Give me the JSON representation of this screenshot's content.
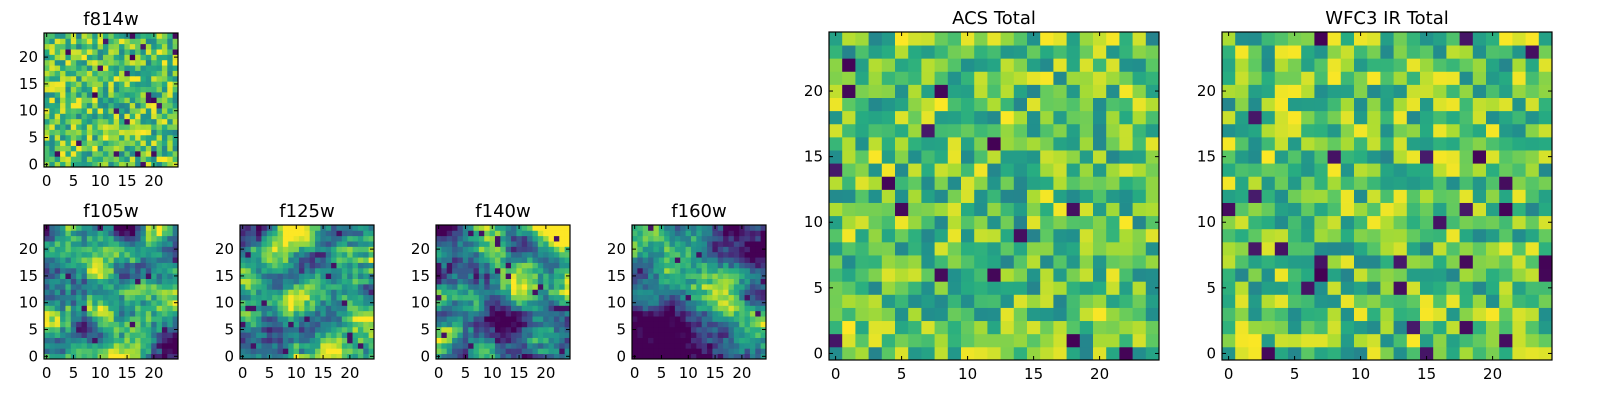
{
  "figure": {
    "description_colormap": "viridis"
  },
  "chart_data": [
    {
      "type": "heatmap",
      "title": "f814w",
      "grid": [
        25,
        25
      ],
      "x_ticks": [
        "0",
        "5",
        "10",
        "15",
        "20"
      ],
      "y_ticks": [
        "0",
        "5",
        "10",
        "15",
        "20"
      ],
      "xlim": [
        0,
        24
      ],
      "ylim": [
        0,
        24
      ],
      "pattern": "fine-noise"
    },
    {
      "type": "heatmap",
      "title": "f105w",
      "grid": [
        25,
        25
      ],
      "x_ticks": [
        "0",
        "5",
        "10",
        "15",
        "20"
      ],
      "y_ticks": [
        "0",
        "5",
        "10",
        "15",
        "20"
      ],
      "xlim": [
        0,
        24
      ],
      "ylim": [
        0,
        24
      ],
      "pattern": "smooth"
    },
    {
      "type": "heatmap",
      "title": "f125w",
      "grid": [
        25,
        25
      ],
      "x_ticks": [
        "0",
        "5",
        "10",
        "15",
        "20"
      ],
      "y_ticks": [
        "0",
        "5",
        "10",
        "15",
        "20"
      ],
      "xlim": [
        0,
        24
      ],
      "ylim": [
        0,
        24
      ],
      "pattern": "smooth"
    },
    {
      "type": "heatmap",
      "title": "f140w",
      "grid": [
        25,
        25
      ],
      "x_ticks": [
        "0",
        "5",
        "10",
        "15",
        "20"
      ],
      "y_ticks": [
        "0",
        "5",
        "10",
        "15",
        "20"
      ],
      "xlim": [
        0,
        24
      ],
      "ylim": [
        0,
        24
      ],
      "pattern": "smooth"
    },
    {
      "type": "heatmap",
      "title": "f160w",
      "grid": [
        25,
        25
      ],
      "x_ticks": [
        "0",
        "5",
        "10",
        "15",
        "20"
      ],
      "y_ticks": [
        "0",
        "5",
        "10",
        "15",
        "20"
      ],
      "xlim": [
        0,
        24
      ],
      "ylim": [
        0,
        24
      ],
      "pattern": "diagonal"
    },
    {
      "type": "heatmap",
      "title": "ACS Total",
      "grid": [
        25,
        25
      ],
      "x_ticks": [
        "0",
        "5",
        "10",
        "15",
        "20"
      ],
      "y_ticks": [
        "0",
        "5",
        "10",
        "15",
        "20"
      ],
      "xlim": [
        0,
        24
      ],
      "ylim": [
        0,
        24
      ],
      "pattern": "noise"
    },
    {
      "type": "heatmap",
      "title": "WFC3 IR Total",
      "grid": [
        25,
        25
      ],
      "x_ticks": [
        "0",
        "5",
        "10",
        "15",
        "20"
      ],
      "y_ticks": [
        "0",
        "5",
        "10",
        "15",
        "20"
      ],
      "xlim": [
        0,
        24
      ],
      "ylim": [
        0,
        24
      ],
      "pattern": "noise"
    }
  ]
}
